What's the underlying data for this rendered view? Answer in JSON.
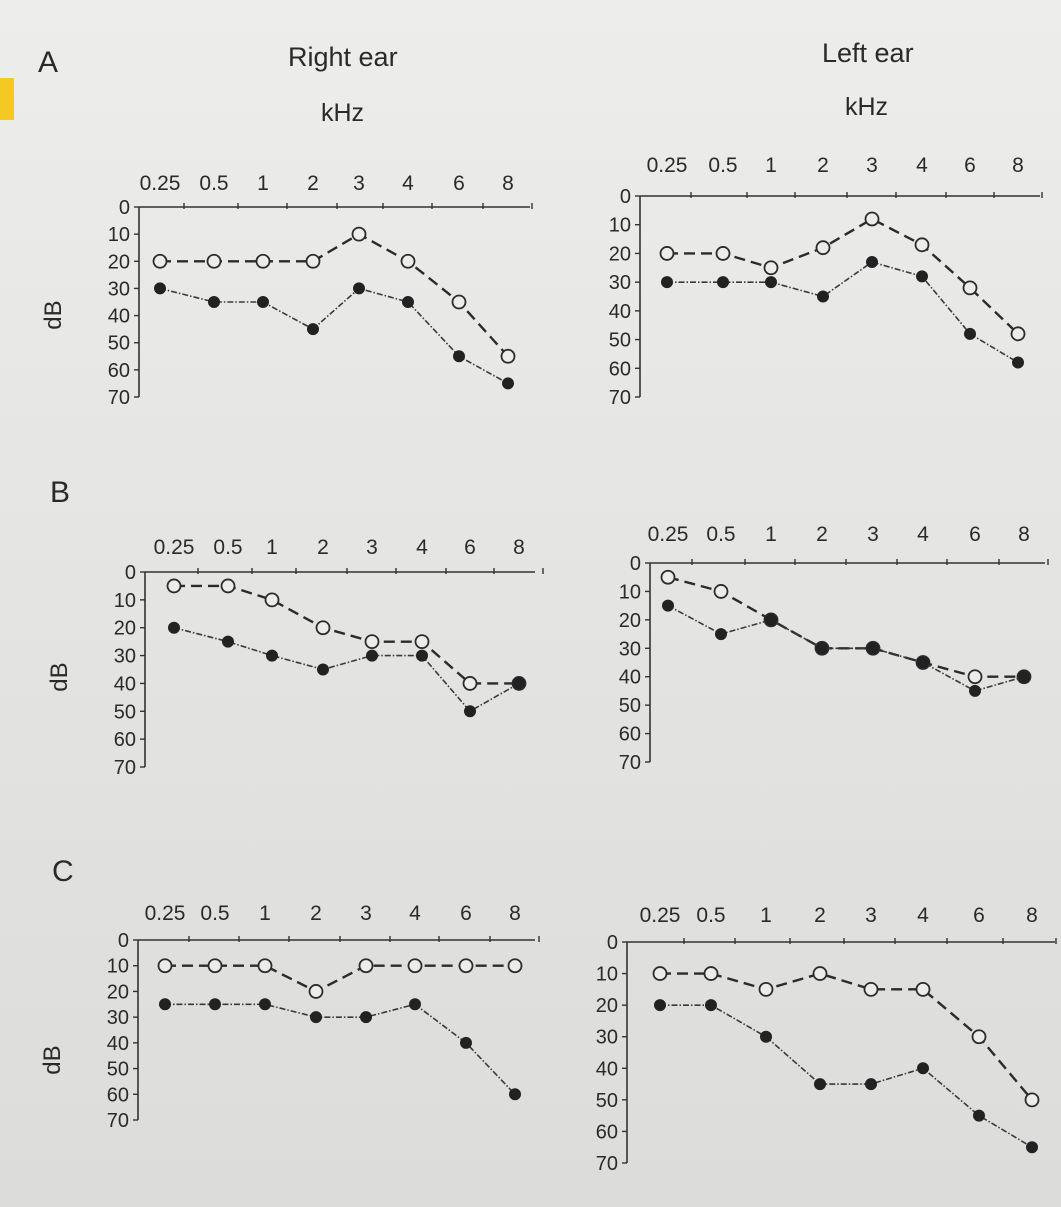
{
  "headers": {
    "right_ear": "Right ear",
    "left_ear": "Left ear",
    "khz": "kHz"
  },
  "panels": [
    "A",
    "B",
    "C"
  ],
  "chart_data": [
    {
      "type": "line",
      "panel": "A",
      "ear": "Right ear",
      "categories": [
        "0.25",
        "0.5",
        "1",
        "2",
        "3",
        "4",
        "6",
        "8"
      ],
      "xlabel": "kHz",
      "ylabel": "dB",
      "ylim": [
        0,
        70
      ],
      "y_inverted": true,
      "yticks": [
        "0",
        "10",
        "20",
        "30",
        "40",
        "50",
        "60",
        "70"
      ],
      "series": [
        {
          "marker": "open",
          "line": "dashed",
          "values": [
            20,
            20,
            20,
            20,
            10,
            20,
            35,
            55
          ]
        },
        {
          "marker": "filled",
          "line": "dotted",
          "values": [
            30,
            35,
            35,
            45,
            30,
            35,
            55,
            65
          ]
        }
      ]
    },
    {
      "type": "line",
      "panel": "A",
      "ear": "Left ear",
      "categories": [
        "0.25",
        "0.5",
        "1",
        "2",
        "3",
        "4",
        "6",
        "8"
      ],
      "xlabel": "kHz",
      "ylabel": "",
      "ylim": [
        0,
        70
      ],
      "y_inverted": true,
      "yticks": [
        "0",
        "10",
        "20",
        "30",
        "40",
        "50",
        "60",
        "70"
      ],
      "series": [
        {
          "marker": "open",
          "line": "dashed",
          "values": [
            20,
            20,
            25,
            18,
            8,
            17,
            32,
            48
          ]
        },
        {
          "marker": "filled",
          "line": "dotted",
          "values": [
            30,
            30,
            30,
            35,
            23,
            28,
            48,
            58
          ]
        }
      ]
    },
    {
      "type": "line",
      "panel": "B",
      "ear": "Right ear",
      "categories": [
        "0.25",
        "0.5",
        "1",
        "2",
        "3",
        "4",
        "6",
        "8"
      ],
      "xlabel": "",
      "ylabel": "dB",
      "ylim": [
        0,
        70
      ],
      "y_inverted": true,
      "yticks": [
        "0",
        "10",
        "20",
        "30",
        "40",
        "50",
        "60",
        "70"
      ],
      "series": [
        {
          "marker": "open",
          "line": "dashed",
          "values": [
            5,
            5,
            10,
            20,
            25,
            25,
            40,
            40
          ]
        },
        {
          "marker": "filled",
          "line": "dotted",
          "values": [
            20,
            25,
            30,
            35,
            30,
            30,
            50,
            40
          ]
        }
      ]
    },
    {
      "type": "line",
      "panel": "B",
      "ear": "Left ear",
      "categories": [
        "0.25",
        "0.5",
        "1",
        "2",
        "3",
        "4",
        "6",
        "8"
      ],
      "xlabel": "",
      "ylabel": "",
      "ylim": [
        0,
        70
      ],
      "y_inverted": true,
      "yticks": [
        "0",
        "10",
        "20",
        "30",
        "40",
        "50",
        "60",
        "70"
      ],
      "series": [
        {
          "marker": "open",
          "line": "dashed",
          "values": [
            5,
            10,
            20,
            30,
            30,
            35,
            40,
            40
          ]
        },
        {
          "marker": "filled",
          "line": "dotted",
          "values": [
            15,
            25,
            20,
            30,
            30,
            35,
            45,
            40
          ]
        }
      ]
    },
    {
      "type": "line",
      "panel": "C",
      "ear": "Right ear",
      "categories": [
        "0.25",
        "0.5",
        "1",
        "2",
        "3",
        "4",
        "6",
        "8"
      ],
      "xlabel": "",
      "ylabel": "dB",
      "ylim": [
        0,
        70
      ],
      "y_inverted": true,
      "yticks": [
        "0",
        "10",
        "20",
        "30",
        "40",
        "50",
        "60",
        "70"
      ],
      "series": [
        {
          "marker": "open",
          "line": "dashed",
          "values": [
            10,
            10,
            10,
            20,
            10,
            10,
            10,
            10
          ]
        },
        {
          "marker": "filled",
          "line": "dotted",
          "values": [
            25,
            25,
            25,
            30,
            30,
            25,
            40,
            60
          ]
        }
      ]
    },
    {
      "type": "line",
      "panel": "C",
      "ear": "Left ear",
      "categories": [
        "0.25",
        "0.5",
        "1",
        "2",
        "3",
        "4",
        "6",
        "8"
      ],
      "xlabel": "",
      "ylabel": "",
      "ylim": [
        0,
        70
      ],
      "y_inverted": true,
      "yticks": [
        "0",
        "10",
        "20",
        "30",
        "40",
        "50",
        "60",
        "70"
      ],
      "series": [
        {
          "marker": "open",
          "line": "dashed",
          "values": [
            10,
            10,
            15,
            10,
            15,
            15,
            30,
            50
          ]
        },
        {
          "marker": "filled",
          "line": "dotted",
          "values": [
            20,
            20,
            30,
            45,
            45,
            40,
            55,
            65
          ]
        }
      ]
    }
  ]
}
